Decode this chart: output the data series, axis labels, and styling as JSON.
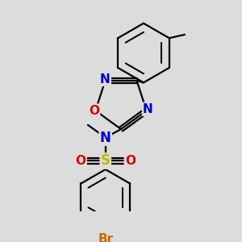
{
  "background_color": "#dcdcdc",
  "bond_color": "#000000",
  "bond_width": 1.6,
  "atom_colors": {
    "N": "#0000cc",
    "O": "#dd0000",
    "S": "#bbbb00",
    "Br": "#cc6600"
  },
  "figsize": [
    3.0,
    3.0
  ],
  "dpi": 100,
  "xlim": [
    0,
    300
  ],
  "ylim": [
    0,
    300
  ]
}
